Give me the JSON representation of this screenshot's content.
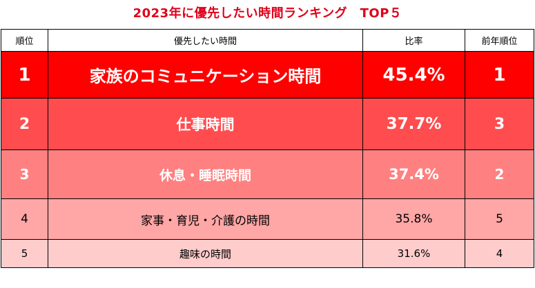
{
  "title": "2023年に優先したい時間ランキング　TOP５",
  "headers": {
    "rank": "順位",
    "item": "優先したい時間",
    "ratio": "比率",
    "prev_rank": "前年順位"
  },
  "rows": [
    {
      "rank": "1",
      "item": "家族のコミュニケーション時間",
      "ratio": "45.4%",
      "prev_rank": "1"
    },
    {
      "rank": "2",
      "item": "仕事時間",
      "ratio": "37.7%",
      "prev_rank": "3"
    },
    {
      "rank": "3",
      "item": "休息・睡眠時間",
      "ratio": "37.4%",
      "prev_rank": "2"
    },
    {
      "rank": "4",
      "item": "家事・育児・介護の時間",
      "ratio": "35.8%",
      "prev_rank": "5"
    },
    {
      "rank": "5",
      "item": "趣味の時間",
      "ratio": "31.6%",
      "prev_rank": "4"
    }
  ],
  "colors": {
    "title": "#e0001b",
    "row1": "#ff0000",
    "row2": "#ff4d4f",
    "row3": "#ff8080",
    "row4": "#ffa6a6",
    "row5": "#ffcccc"
  }
}
